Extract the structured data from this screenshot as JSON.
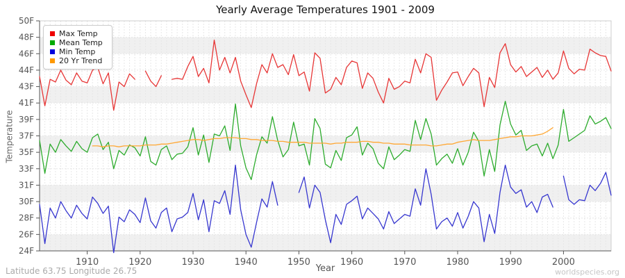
{
  "title": "Yearly Average Temperatures 1901 - 2009",
  "footer": {
    "coordinates": "Latitude 63.75 Longitude 26.75",
    "watermark": "worldspecies.org"
  },
  "axes": {
    "y_label": "Temperature",
    "x_label": "Year",
    "y_tick_labels": [
      "50F",
      "48F",
      "46F",
      "44F",
      "43F",
      "41F",
      "39F",
      "37F",
      "35F",
      "33F",
      "31F",
      "30F",
      "28F",
      "26F",
      "24F"
    ],
    "x_tick_labels": [
      "1910",
      "1920",
      "1930",
      "1940",
      "1950",
      "1960",
      "1970",
      "1980",
      "1990",
      "2000"
    ]
  },
  "legend": {
    "items": [
      {
        "label": "Max Temp",
        "color": "#ee0000"
      },
      {
        "label": "Mean Temp",
        "color": "#00aa00"
      },
      {
        "label": "Min Temp",
        "color": "#0000dd"
      },
      {
        "label": "20 Yr Trend",
        "color": "#ff9900"
      }
    ]
  },
  "colors": {
    "band_gray": "#f0f0f0",
    "grid_line": "#e6e6e6",
    "axis_line": "#555555",
    "plot_border": "#cccccc",
    "tick_label": "#555555"
  },
  "chart_data": {
    "type": "line",
    "title": "Yearly Average Temperatures 1901 - 2009",
    "xlabel": "Year",
    "ylabel": "Temperature",
    "x_start": 1901,
    "x_end": 2009,
    "x_ticks": [
      1910,
      1920,
      1930,
      1940,
      1950,
      1960,
      1970,
      1980,
      1990,
      2000
    ],
    "y_ticks_f": [
      50,
      48,
      46,
      44,
      43,
      41,
      39,
      37,
      35,
      33,
      31,
      30,
      28,
      26,
      24
    ],
    "y_axis_unit": "F",
    "grid": true,
    "legend_position": "top-left",
    "series": [
      {
        "name": "Max Temp",
        "color": "#e73535",
        "values": [
          43.9,
          40.7,
          43.6,
          43.3,
          44.6,
          43.5,
          43.0,
          44.3,
          43.4,
          43.2,
          44.6,
          44.9,
          43.1,
          44.3,
          40.2,
          43.3,
          42.8,
          44.2,
          43.6,
          null,
          44.5,
          43.4,
          42.8,
          44.0,
          null,
          43.6,
          43.7,
          43.6,
          45.0,
          46.1,
          43.9,
          44.8,
          43.2,
          47.9,
          44.6,
          46.0,
          44.3,
          46.0,
          43.4,
          41.9,
          40.5,
          43.1,
          45.2,
          44.3,
          46.4,
          44.9,
          45.2,
          44.1,
          46.3,
          44.0,
          44.4,
          42.3,
          46.5,
          45.9,
          42.1,
          42.5,
          43.8,
          43.0,
          44.9,
          45.6,
          45.4,
          42.6,
          44.3,
          43.7,
          42.2,
          41.0,
          43.7,
          42.5,
          42.8,
          43.4,
          43.2,
          45.8,
          44.3,
          46.4,
          46.0,
          41.3,
          42.4,
          43.3,
          44.3,
          44.4,
          42.9,
          43.9,
          44.8,
          44.3,
          40.6,
          43.8,
          42.7,
          46.5,
          47.5,
          45.2,
          44.4,
          45.0,
          43.9,
          44.4,
          44.9,
          43.8,
          44.6,
          43.6,
          44.3,
          46.7,
          44.8,
          44.2,
          44.7,
          44.6,
          46.9,
          46.5,
          46.2,
          46.1,
          44.5
        ]
      },
      {
        "name": "Mean Temp",
        "color": "#2cab2c",
        "values": [
          36.9,
          33.3,
          36.5,
          35.6,
          37.0,
          36.3,
          35.7,
          36.8,
          36.0,
          35.6,
          37.2,
          37.6,
          35.9,
          36.7,
          33.8,
          35.8,
          35.3,
          36.4,
          36.1,
          35.2,
          37.3,
          34.6,
          34.2,
          35.9,
          36.3,
          34.8,
          35.4,
          35.5,
          36.2,
          38.3,
          35.3,
          37.5,
          34.5,
          37.6,
          37.4,
          38.5,
          35.8,
          40.9,
          36.3,
          33.9,
          32.6,
          35.3,
          37.3,
          36.6,
          39.5,
          36.9,
          35.1,
          35.9,
          38.9,
          36.3,
          36.5,
          34.2,
          39.3,
          38.2,
          34.3,
          33.9,
          35.8,
          34.7,
          37.2,
          37.5,
          38.4,
          35.3,
          36.6,
          36.0,
          34.4,
          33.8,
          36.2,
          34.8,
          35.3,
          35.9,
          35.7,
          39.1,
          37.0,
          39.3,
          37.6,
          34.2,
          34.9,
          35.4,
          34.4,
          36.0,
          34.2,
          35.6,
          37.8,
          36.8,
          33.0,
          35.9,
          33.5,
          38.6,
          41.2,
          38.7,
          37.5,
          38.0,
          35.8,
          36.3,
          36.5,
          35.2,
          36.6,
          34.9,
          36.4,
          40.3,
          36.8,
          37.2,
          37.6,
          38.0,
          39.6,
          38.7,
          39.0,
          39.4,
          38.2
        ]
      },
      {
        "name": "Min Temp",
        "color": "#3636cf",
        "values": [
          29.9,
          25.6,
          29.5,
          28.4,
          30.2,
          29.2,
          28.4,
          29.8,
          28.9,
          28.3,
          30.7,
          30.0,
          28.9,
          29.7,
          24.6,
          28.5,
          28.0,
          29.3,
          28.8,
          27.9,
          30.6,
          28.1,
          27.3,
          29.0,
          29.5,
          26.9,
          28.3,
          28.5,
          29.0,
          31.1,
          28.2,
          30.4,
          26.9,
          30.3,
          30.0,
          31.4,
          28.8,
          34.2,
          29.3,
          26.6,
          25.2,
          27.9,
          30.5,
          29.6,
          32.4,
          29.8,
          null,
          null,
          null,
          31.2,
          32.9,
          29.5,
          32.0,
          31.2,
          28.2,
          25.7,
          28.8,
          27.7,
          29.9,
          30.3,
          30.8,
          28.3,
          29.5,
          28.9,
          28.3,
          27.2,
          29.1,
          27.8,
          28.3,
          28.8,
          28.6,
          31.6,
          29.8,
          33.8,
          31.0,
          27.2,
          28.0,
          28.4,
          27.5,
          29.0,
          27.3,
          28.6,
          30.2,
          29.5,
          25.8,
          28.8,
          26.7,
          31.2,
          34.2,
          31.8,
          31.1,
          31.5,
          29.6,
          30.2,
          29.0,
          30.7,
          31.0,
          29.6,
          null,
          33.0,
          30.4,
          29.9,
          30.4,
          30.3,
          32.0,
          31.4,
          32.2,
          33.4,
          30.9
        ]
      },
      {
        "name": "20 Yr Trend",
        "color": "#ffa733",
        "values": [
          null,
          null,
          null,
          null,
          null,
          null,
          null,
          null,
          null,
          null,
          36.3,
          36.3,
          36.2,
          36.3,
          36.3,
          36.2,
          36.3,
          36.3,
          36.3,
          36.3,
          36.4,
          36.4,
          36.4,
          36.5,
          36.5,
          36.6,
          36.7,
          36.8,
          36.9,
          37.0,
          37.0,
          36.9,
          37.0,
          37.1,
          37.1,
          37.2,
          37.2,
          37.2,
          37.1,
          37.1,
          37.0,
          37.0,
          36.9,
          36.9,
          36.9,
          36.8,
          36.8,
          36.7,
          36.7,
          36.7,
          36.7,
          36.6,
          36.6,
          36.6,
          36.6,
          36.5,
          36.6,
          36.6,
          36.7,
          36.7,
          36.7,
          36.8,
          36.8,
          36.7,
          36.7,
          36.6,
          36.6,
          36.5,
          36.5,
          36.5,
          36.4,
          36.4,
          36.4,
          36.4,
          36.3,
          36.3,
          36.4,
          36.5,
          36.5,
          36.7,
          36.8,
          36.9,
          37.0,
          36.9,
          36.9,
          36.9,
          37.0,
          37.1,
          37.2,
          37.3,
          37.3,
          37.4,
          37.4,
          37.4,
          37.5,
          37.6,
          37.9,
          38.3,
          null,
          null,
          null,
          null,
          null,
          null,
          null,
          null,
          null,
          null,
          null
        ]
      }
    ]
  }
}
